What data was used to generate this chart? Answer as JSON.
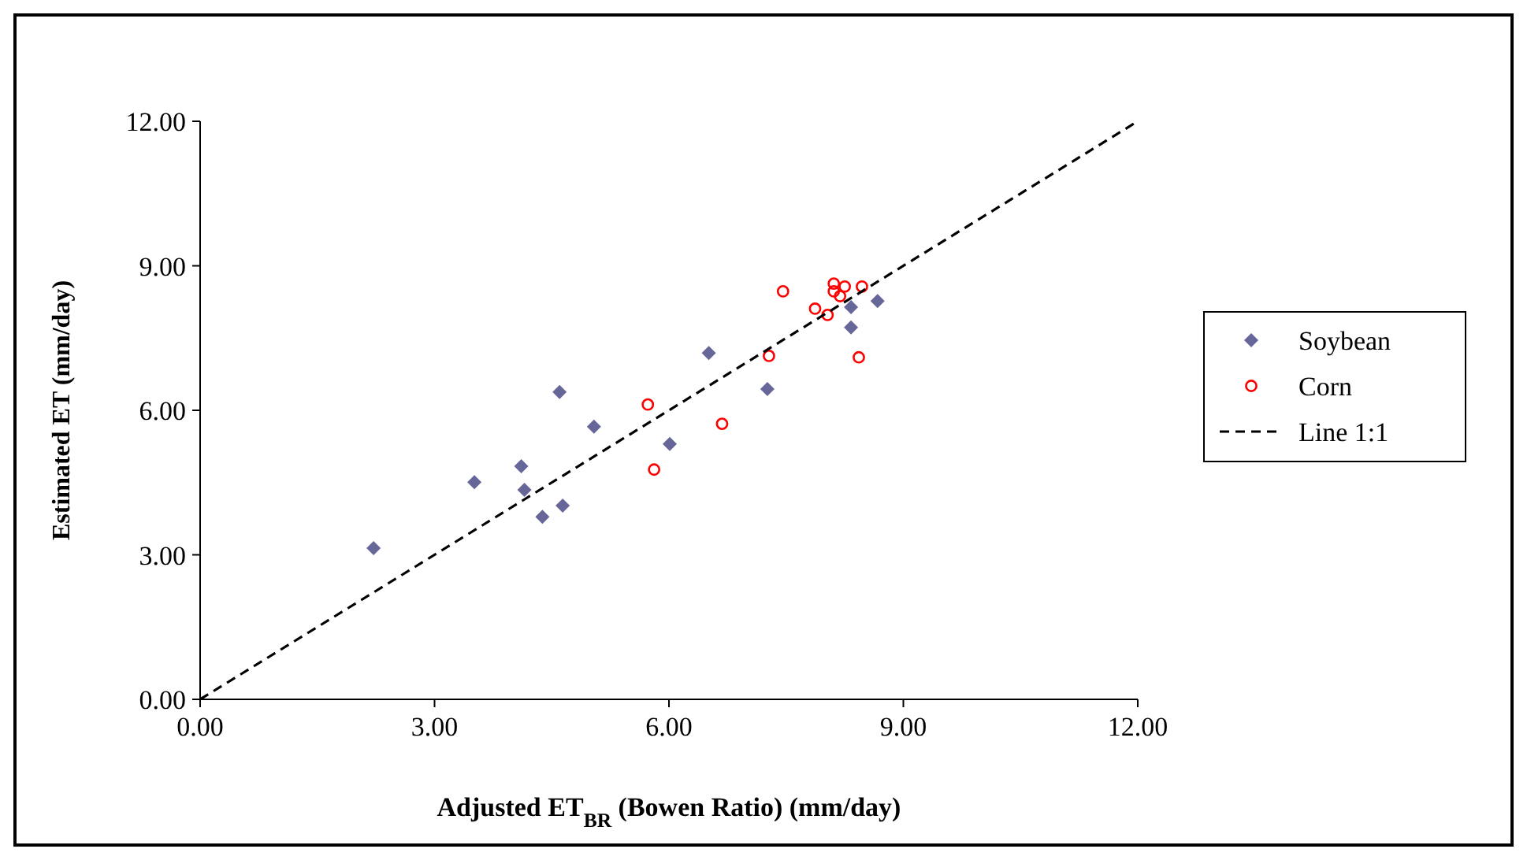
{
  "chart_data": {
    "type": "scatter",
    "xlabel": "Adjusted ET$_{BR}$ (Bowen Ratio) (mm/day)",
    "ylabel": "Estimated ET (mm/day)",
    "xlim": [
      0,
      12
    ],
    "ylim": [
      0,
      12
    ],
    "xticks": [
      {
        "value": 0,
        "label": "0.00"
      },
      {
        "value": 3,
        "label": "3.00"
      },
      {
        "value": 6,
        "label": "6.00"
      },
      {
        "value": 9,
        "label": "9.00"
      },
      {
        "value": 12,
        "label": "12.00"
      }
    ],
    "yticks": [
      {
        "value": 0,
        "label": "0.00"
      },
      {
        "value": 3,
        "label": "3.00"
      },
      {
        "value": 6,
        "label": "6.00"
      },
      {
        "value": 9,
        "label": "9.00"
      },
      {
        "value": 12,
        "label": "12.00"
      }
    ],
    "legend": "right",
    "grid": false,
    "series": [
      {
        "name": "Soybean",
        "marker": "diamond",
        "color": "#666699",
        "x": [
          2.22,
          3.51,
          4.11,
          4.15,
          4.38,
          4.64,
          4.6,
          5.04,
          6.01,
          6.51,
          7.26,
          8.33,
          8.33,
          8.67
        ],
        "values": [
          3.14,
          4.51,
          4.84,
          4.35,
          3.79,
          4.02,
          6.38,
          5.66,
          5.3,
          7.19,
          6.44,
          8.14,
          7.72,
          8.27
        ]
      },
      {
        "name": "Corn",
        "marker": "circle",
        "color": "#ff0000",
        "x": [
          5.73,
          5.81,
          6.68,
          7.28,
          7.46,
          7.87,
          8.03,
          8.11,
          8.11,
          8.19,
          8.25,
          8.47,
          8.43
        ],
        "values": [
          6.12,
          4.77,
          5.72,
          7.13,
          8.47,
          8.11,
          7.98,
          8.63,
          8.47,
          8.37,
          8.57,
          8.57,
          7.1
        ]
      },
      {
        "name": "Line 1:1",
        "type": "line",
        "marker": "none",
        "line_style": "dashed",
        "color": "#000000",
        "x": [
          0,
          12
        ],
        "values": [
          0,
          12
        ]
      }
    ]
  }
}
